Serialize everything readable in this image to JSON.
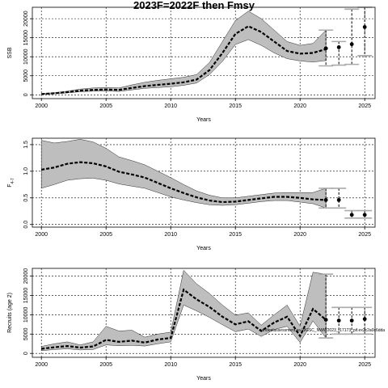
{
  "title": "2023F=2022F then Fmsy",
  "chart_data": [
    {
      "type": "line",
      "xlabel": "Years",
      "ylabel": "SSB",
      "xlim": [
        1999.3,
        2025.8
      ],
      "ylim": [
        -1000,
        23000
      ],
      "xticks": [
        2000,
        2005,
        2010,
        2015,
        2020,
        2025
      ],
      "yticks": [
        0,
        5000,
        10000,
        15000,
        20000
      ],
      "grid": true,
      "band_color": "#bebebe",
      "x": [
        2000,
        2001,
        2002,
        2003,
        2004,
        2005,
        2006,
        2007,
        2008,
        2009,
        2010,
        2011,
        2012,
        2013,
        2014,
        2015,
        2016,
        2017,
        2018,
        2019,
        2020,
        2021,
        2022
      ],
      "estimate": [
        200,
        400,
        700,
        1100,
        1300,
        1400,
        1300,
        1800,
        2300,
        2600,
        2900,
        3300,
        4000,
        6500,
        11000,
        16000,
        18000,
        16500,
        14000,
        11500,
        10800,
        11000,
        12000
      ],
      "upper": [
        300,
        550,
        950,
        1500,
        1800,
        1900,
        1800,
        2600,
        3300,
        3800,
        4200,
        4600,
        5300,
        8500,
        14000,
        19500,
        22000,
        20000,
        17000,
        14000,
        13000,
        13500,
        17000
      ],
      "lower": [
        120,
        280,
        500,
        800,
        950,
        1000,
        900,
        1300,
        1700,
        1900,
        2100,
        2500,
        3100,
        5300,
        8800,
        13200,
        14500,
        13000,
        11000,
        9500,
        8900,
        8600,
        9000
      ],
      "projection": {
        "x": [
          2022,
          2023,
          2024,
          2025
        ],
        "values": [
          12200,
          12500,
          13300,
          17800
        ],
        "lower": [
          7600,
          7800,
          8000,
          10300
        ],
        "upper": [
          17000,
          14000,
          22500,
          23000
        ]
      }
    },
    {
      "type": "line",
      "xlabel": "Years",
      "ylabel": "F4-7",
      "ylabel_main": "F",
      "ylabel_sub": "4-7",
      "xlim": [
        1999.3,
        2025.8
      ],
      "ylim": [
        -0.05,
        1.62
      ],
      "xticks": [
        2000,
        2005,
        2010,
        2015,
        2020,
        2025
      ],
      "yticks": [
        "0.0",
        "0.5",
        "1.0",
        "1.5"
      ],
      "ytick_values": [
        0,
        0.5,
        1.0,
        1.5
      ],
      "grid": true,
      "band_color": "#bebebe",
      "x": [
        2000,
        2001,
        2002,
        2003,
        2004,
        2005,
        2006,
        2007,
        2008,
        2009,
        2010,
        2011,
        2012,
        2013,
        2014,
        2015,
        2016,
        2017,
        2018,
        2019,
        2020,
        2021,
        2022
      ],
      "estimate": [
        1.03,
        1.07,
        1.14,
        1.17,
        1.15,
        1.09,
        0.99,
        0.94,
        0.88,
        0.78,
        0.68,
        0.59,
        0.51,
        0.45,
        0.42,
        0.43,
        0.46,
        0.49,
        0.52,
        0.52,
        0.5,
        0.47,
        0.46
      ],
      "upper": [
        1.58,
        1.53,
        1.56,
        1.6,
        1.55,
        1.43,
        1.27,
        1.2,
        1.12,
        1.0,
        0.88,
        0.75,
        0.63,
        0.55,
        0.5,
        0.5,
        0.53,
        0.56,
        0.59,
        0.6,
        0.6,
        0.6,
        0.68
      ],
      "lower": [
        0.68,
        0.75,
        0.83,
        0.86,
        0.87,
        0.83,
        0.76,
        0.72,
        0.68,
        0.6,
        0.52,
        0.46,
        0.41,
        0.37,
        0.36,
        0.37,
        0.4,
        0.43,
        0.45,
        0.45,
        0.42,
        0.39,
        0.31
      ],
      "projection": {
        "x": [
          2022,
          2023,
          2024,
          2025
        ],
        "values": [
          0.46,
          0.46,
          0.18,
          0.18
        ],
        "lower": [
          0.31,
          0.31,
          0.12,
          0.12
        ],
        "upper": [
          0.68,
          0.68,
          0.26,
          0.26
        ]
      }
    },
    {
      "type": "line",
      "xlabel": "Years",
      "ylabel": "Recruits (age 2)",
      "xlim": [
        1999.3,
        2025.8
      ],
      "ylim": [
        -1000,
        22000
      ],
      "xticks": [
        2000,
        2005,
        2010,
        2015,
        2020,
        2025
      ],
      "yticks": [
        0,
        5000,
        10000,
        15000,
        20000
      ],
      "grid": true,
      "band_color": "#bebebe",
      "x": [
        2000,
        2001,
        2002,
        2003,
        2004,
        2005,
        2006,
        2007,
        2008,
        2009,
        2010,
        2011,
        2012,
        2013,
        2014,
        2015,
        2016,
        2017,
        2018,
        2019,
        2020,
        2021,
        2022
      ],
      "estimate": [
        1200,
        1600,
        1900,
        1500,
        1800,
        3500,
        3000,
        3300,
        2800,
        3600,
        4000,
        16500,
        14000,
        12000,
        9500,
        7500,
        8300,
        5800,
        8000,
        9500,
        4500,
        11500,
        8700
      ],
      "upper": [
        1800,
        2500,
        3000,
        2200,
        3000,
        7000,
        5800,
        6000,
        4200,
        5000,
        5500,
        21500,
        18000,
        15500,
        12500,
        9900,
        10500,
        7300,
        10000,
        12500,
        7000,
        21000,
        20500
      ],
      "lower": [
        700,
        1000,
        1200,
        900,
        1000,
        2200,
        2000,
        2100,
        1900,
        2500,
        3000,
        12500,
        11000,
        9300,
        7400,
        5600,
        6300,
        4400,
        6200,
        7000,
        2800,
        8400,
        4000
      ],
      "projection": {
        "x": [
          2022,
          2023,
          2024,
          2025
        ],
        "values": [
          8700,
          8500,
          8500,
          8900
        ],
        "lower": [
          4000,
          5000,
          5000,
          5000
        ],
        "upper": [
          20500,
          11900,
          11900,
          11900
        ]
      },
      "annotation": "sandeelassessment.sa.WGSC_NWW2023_r17173_pif.ex2c2a0c6dda"
    }
  ]
}
